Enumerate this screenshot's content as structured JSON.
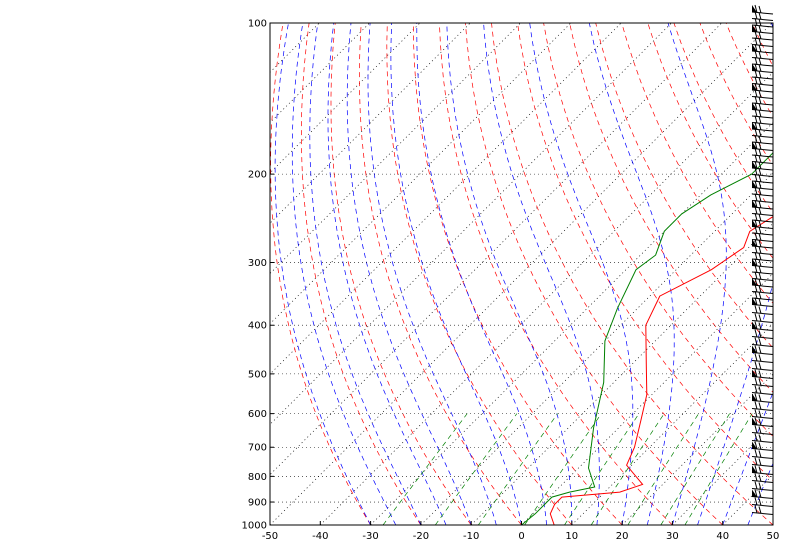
{
  "chart_data": {
    "type": "line",
    "title": "",
    "xlabel": "",
    "ylabel": "",
    "x_ticks": [
      -50,
      -40,
      -30,
      -20,
      -10,
      0,
      10,
      20,
      30,
      40,
      50
    ],
    "y_ticks": [
      100,
      200,
      300,
      400,
      500,
      600,
      700,
      800,
      900,
      1000
    ],
    "xlim": [
      -50,
      50
    ],
    "ylim": [
      1000,
      100
    ],
    "y_scale": "log",
    "grid": true,
    "series": [
      {
        "name": "",
        "color": "#ff0000",
        "points": [
          [
            6.5,
            1000
          ],
          [
            3.5,
            950
          ],
          [
            2.5,
            910
          ],
          [
            2.5,
            880
          ],
          [
            13,
            860
          ],
          [
            16,
            830
          ],
          [
            9,
            760
          ],
          [
            7,
            700
          ],
          [
            3,
            620
          ],
          [
            -1,
            550
          ],
          [
            -7,
            480
          ],
          [
            -15,
            400
          ],
          [
            -18,
            350
          ],
          [
            -13,
            310
          ],
          [
            -11,
            280
          ],
          [
            -13,
            260
          ],
          [
            -11,
            240
          ],
          [
            -9,
            210
          ],
          [
            -6,
            190
          ],
          [
            -6,
            170
          ],
          [
            -8,
            150
          ],
          [
            -9,
            140
          ],
          [
            -7,
            130
          ],
          [
            -8,
            110
          ],
          [
            -5,
            100
          ]
        ]
      },
      {
        "name": "",
        "color": "#008000",
        "points": [
          [
            0,
            1000
          ],
          [
            0.5,
            950
          ],
          [
            0.5,
            880
          ],
          [
            3,
            860
          ],
          [
            7,
            840
          ],
          [
            2,
            770
          ],
          [
            -5,
            640
          ],
          [
            -12,
            520
          ],
          [
            -20,
            430
          ],
          [
            -24,
            370
          ],
          [
            -28,
            310
          ],
          [
            -27,
            290
          ],
          [
            -30,
            260
          ],
          [
            -30,
            240
          ],
          [
            -28,
            220
          ],
          [
            -24,
            200
          ],
          [
            -24,
            170
          ],
          [
            -22,
            140
          ],
          [
            -23,
            125
          ],
          [
            -21,
            115
          ],
          [
            -19,
            105
          ],
          [
            -16,
            100
          ]
        ]
      }
    ],
    "background_lines": {
      "isotherm_color": "#000000",
      "dry_adiabat_color": "#ff0000",
      "moist_adiabat_color": "#0000ff",
      "mixing_ratio_color": "#008000"
    },
    "wind_barbs": {
      "color": "#000000"
    }
  }
}
